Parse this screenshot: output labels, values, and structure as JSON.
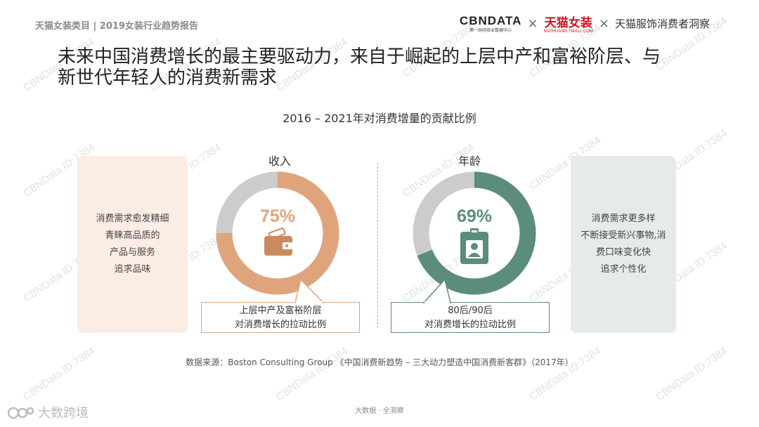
{
  "header": {
    "left_text": "天猫女装类目 | 2019女装行业趋势报告",
    "cbn_logo": "CBNDATA",
    "cbn_sub": "第一财经商业数据中心",
    "cross_1": "×",
    "tmall_logo": "天猫女装",
    "tmall_sub": "NVZHUANG.TMALL.COM",
    "cross_2": "×",
    "partner": "天猫服饰消费者洞察"
  },
  "title_line1": "未来中国消费增长的最主要驱动力，来自于崛起的上层中产和富裕阶层、与",
  "title_line2": "新世代年轻人的消费新需求",
  "subtitle": "2016 – 2021年对消费增量的贡献比例",
  "left_card": [
    "消费需求愈发精细",
    "青睐高品质的",
    "产品与服务",
    "追求品味"
  ],
  "right_card": [
    "消费需求更多样",
    "不断接受新兴事物,消",
    "费口味变化快",
    "追求个性化"
  ],
  "income": {
    "label": "收入",
    "percent_text": "75%",
    "value": 0.75,
    "color": "#e0a47c",
    "rest_color": "#cccccc",
    "icon": "wallet-icon",
    "callout_line1": "上层中产及富裕阶层",
    "callout_line2": "对消费增长的拉动比例"
  },
  "age": {
    "label": "年龄",
    "percent_text": "69%",
    "value": 0.69,
    "color": "#5c8c7e",
    "rest_color": "#cccccc",
    "icon": "badge-icon",
    "callout_line1": "80后/90后",
    "callout_line2": "对消费增长的拉动比例"
  },
  "source": "数据来源：Boston Consulting Group 《中国消费新趋势 – 三大动力塑造中国消费新客群》（2017年）",
  "footer": "大数据 · 全洞察",
  "brand": "大数跨境",
  "watermark": "CBNData ID:7384"
}
